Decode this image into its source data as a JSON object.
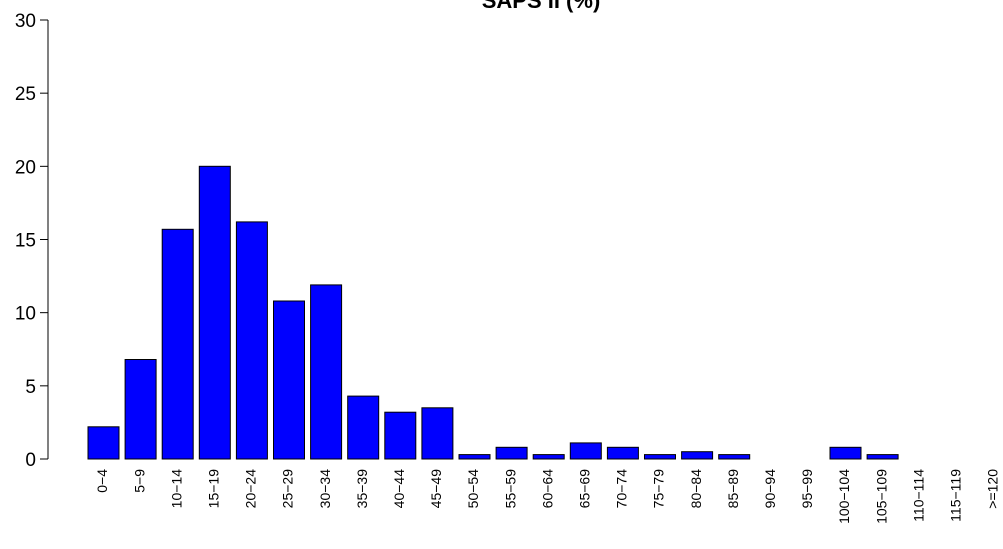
{
  "chart_data": {
    "type": "bar",
    "title": "SAPS II (%)",
    "xlabel": "",
    "ylabel": "",
    "ylim": [
      0,
      30
    ],
    "yticks": [
      0,
      5,
      10,
      15,
      20,
      25,
      30
    ],
    "grid": false,
    "bar_color": "#0000ff",
    "categories": [
      "0−4",
      "5−9",
      "10−14",
      "15−19",
      "20−24",
      "25−29",
      "30−34",
      "35−39",
      "40−44",
      "45−49",
      "50−54",
      "55−59",
      "60−64",
      "65−69",
      "70−74",
      "75−79",
      "80−84",
      "85−89",
      "90−94",
      "95−99",
      "100−104",
      "105−109",
      "110−114",
      "115−119",
      ">=120"
    ],
    "values": [
      2.2,
      6.8,
      15.7,
      20.0,
      16.2,
      10.8,
      11.9,
      4.3,
      3.2,
      3.5,
      0.3,
      0.8,
      0.3,
      1.1,
      0.8,
      0.3,
      0.5,
      0.3,
      0.0,
      0.0,
      0.8,
      0.3,
      0.0,
      0.0,
      0.0
    ]
  }
}
